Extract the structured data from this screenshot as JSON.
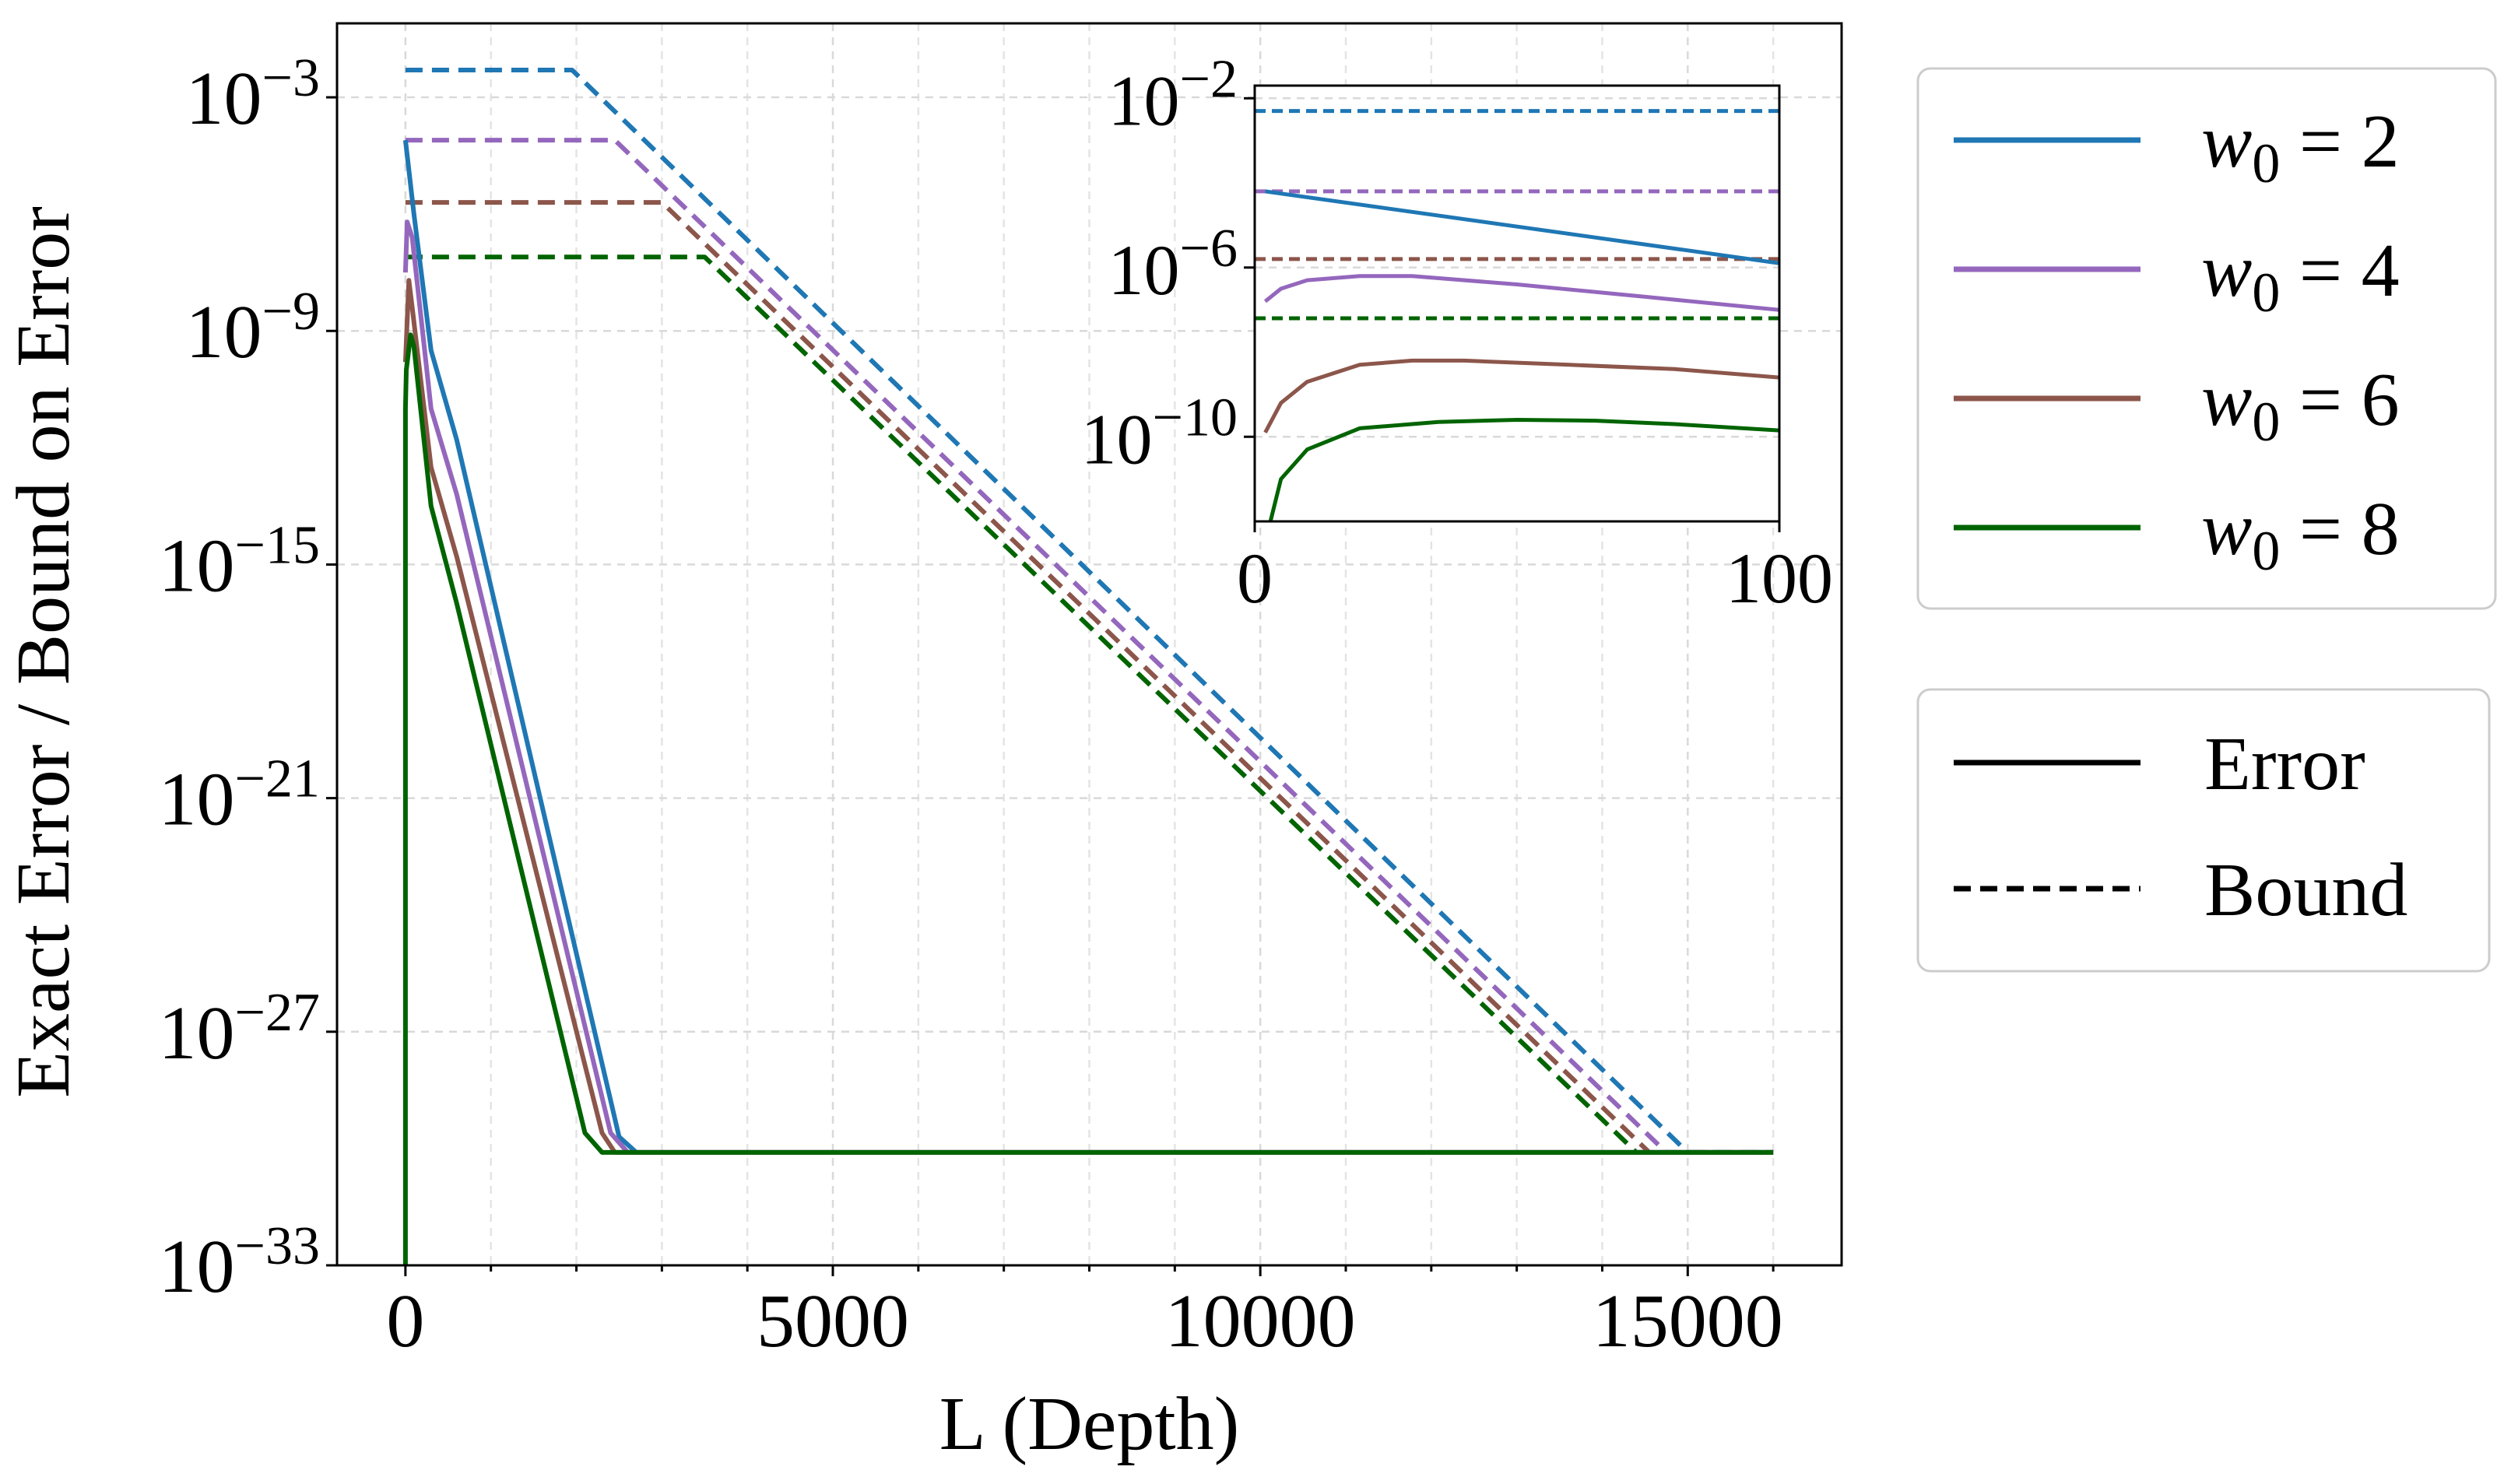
{
  "chart_data": [
    {
      "type": "line",
      "role": "main",
      "xlabel": "L (Depth)",
      "ylabel": "Exact Error / Bound on Error",
      "yscale": "log10",
      "xlim": [
        -800,
        16800
      ],
      "ylim_log10": [
        -33,
        -1.1
      ],
      "xticks": [
        0,
        5000,
        10000,
        15000
      ],
      "xtick_labels": [
        "0",
        "5000",
        "10000",
        "15000"
      ],
      "yticks_log10": [
        -3,
        -9,
        -15,
        -21,
        -27,
        -33
      ],
      "ytick_labels": [
        {
          "base": "10",
          "exp": "−3"
        },
        {
          "base": "10",
          "exp": "−9"
        },
        {
          "base": "10",
          "exp": "−15"
        },
        {
          "base": "10",
          "exp": "−21"
        },
        {
          "base": "10",
          "exp": "−27"
        },
        {
          "base": "10",
          "exp": "−33"
        }
      ],
      "grid": true,
      "series": [
        {
          "name": "w0 = 2 bound",
          "color": "#1f77b4",
          "style": "dashed",
          "x": [
            0,
            1950,
            15000,
            16000
          ],
          "y_log10": [
            -2.3,
            -2.3,
            -30.1,
            -30.1
          ]
        },
        {
          "name": "w0 = 4 bound",
          "color": "#9467bd",
          "style": "dashed",
          "x": [
            0,
            2450,
            14750,
            16000
          ],
          "y_log10": [
            -4.1,
            -4.1,
            -30.1,
            -30.1
          ]
        },
        {
          "name": "w0 = 6 bound",
          "color": "#8c564b",
          "style": "dashed",
          "x": [
            0,
            3000,
            14550,
            16000
          ],
          "y_log10": [
            -5.7,
            -5.7,
            -30.1,
            -30.1
          ]
        },
        {
          "name": "w0 = 8 bound",
          "color": "#006400",
          "style": "dashed",
          "x": [
            0,
            3500,
            14400,
            16000
          ],
          "y_log10": [
            -7.1,
            -7.1,
            -30.1,
            -30.1
          ]
        },
        {
          "name": "w0 = 2 error",
          "color": "#1f77b4",
          "style": "solid",
          "x": [
            0,
            100,
            300,
            600,
            2500,
            2700,
            16000
          ],
          "y_log10": [
            -4.1,
            -6.0,
            -9.5,
            -11.8,
            -29.7,
            -30.1,
            -30.1
          ]
        },
        {
          "name": "w0 = 4 error",
          "color": "#9467bd",
          "style": "solid",
          "x": [
            0,
            20,
            80,
            300,
            600,
            2400,
            2600,
            16000
          ],
          "y_log10": [
            -7.5,
            -6.2,
            -6.6,
            -11.0,
            -13.2,
            -29.6,
            -30.1,
            -30.1
          ]
        },
        {
          "name": "w0 = 6 error",
          "color": "#8c564b",
          "style": "solid",
          "x": [
            0,
            40,
            80,
            300,
            600,
            2300,
            2450,
            16000
          ],
          "y_log10": [
            -9.8,
            -7.7,
            -8.4,
            -12.5,
            -14.8,
            -29.6,
            -30.1,
            -30.1
          ]
        },
        {
          "name": "w0 = 8 error",
          "color": "#006400",
          "style": "solid",
          "x": [
            0,
            0,
            10,
            60,
            100,
            300,
            600,
            2100,
            2300,
            16000
          ],
          "y_log10": [
            -33,
            -11.0,
            -10.0,
            -9.1,
            -9.4,
            -13.5,
            -16.0,
            -29.6,
            -30.1,
            -30.1
          ]
        }
      ]
    },
    {
      "type": "line",
      "role": "inset",
      "yscale": "log10",
      "xlim": [
        0,
        100
      ],
      "ylim_log10": [
        -12.0,
        -1.7
      ],
      "xticks": [
        0,
        100
      ],
      "xtick_labels": [
        "0",
        "100"
      ],
      "yticks_log10": [
        -2,
        -6,
        -10
      ],
      "ytick_labels": [
        {
          "base": "10",
          "exp": "−2"
        },
        {
          "base": "10",
          "exp": "−6"
        },
        {
          "base": "10",
          "exp": "−10"
        }
      ],
      "grid": true,
      "series": [
        {
          "name": "w0 = 2 bound",
          "color": "#1f77b4",
          "style": "dashed",
          "x": [
            0,
            100
          ],
          "y_log10": [
            -2.3,
            -2.3
          ]
        },
        {
          "name": "w0 = 4 bound",
          "color": "#9467bd",
          "style": "dashed",
          "x": [
            0,
            100
          ],
          "y_log10": [
            -4.2,
            -4.2
          ]
        },
        {
          "name": "w0 = 6 bound",
          "color": "#8c564b",
          "style": "dashed",
          "x": [
            0,
            100
          ],
          "y_log10": [
            -5.8,
            -5.8
          ]
        },
        {
          "name": "w0 = 8 bound",
          "color": "#006400",
          "style": "dashed",
          "x": [
            0,
            100
          ],
          "y_log10": [
            -7.2,
            -7.2
          ]
        },
        {
          "name": "w0 = 2 error",
          "color": "#1f77b4",
          "style": "solid",
          "x": [
            2,
            100
          ],
          "y_log10": [
            -4.2,
            -5.9
          ]
        },
        {
          "name": "w0 = 4 error",
          "color": "#9467bd",
          "style": "solid",
          "x": [
            2,
            5,
            10,
            20,
            30,
            50,
            75,
            100
          ],
          "y_log10": [
            -6.8,
            -6.5,
            -6.3,
            -6.2,
            -6.2,
            -6.4,
            -6.7,
            -7.0
          ]
        },
        {
          "name": "w0 = 6 error",
          "color": "#8c564b",
          "style": "solid",
          "x": [
            2,
            5,
            10,
            20,
            30,
            40,
            60,
            80,
            100
          ],
          "y_log10": [
            -9.9,
            -9.2,
            -8.7,
            -8.3,
            -8.2,
            -8.2,
            -8.3,
            -8.4,
            -8.6
          ]
        },
        {
          "name": "w0 = 8 error",
          "color": "#006400",
          "style": "solid",
          "x": [
            3,
            5,
            10,
            20,
            35,
            50,
            65,
            80,
            100
          ],
          "y_log10": [
            -12.0,
            -11.0,
            -10.3,
            -9.8,
            -9.65,
            -9.6,
            -9.62,
            -9.7,
            -9.85
          ]
        }
      ]
    }
  ],
  "legend_w0": {
    "items": [
      {
        "symbol": "w",
        "sub": "0",
        "value": " = 2",
        "color": "#1f77b4"
      },
      {
        "symbol": "w",
        "sub": "0",
        "value": " = 4",
        "color": "#9467bd"
      },
      {
        "symbol": "w",
        "sub": "0",
        "value": " = 6",
        "color": "#8c564b"
      },
      {
        "symbol": "w",
        "sub": "0",
        "value": " = 8",
        "color": "#006400"
      }
    ]
  },
  "legend_style": {
    "items": [
      {
        "label": "Error",
        "style": "solid",
        "color": "#000000"
      },
      {
        "label": "Bound",
        "style": "dashed",
        "color": "#000000"
      }
    ]
  }
}
